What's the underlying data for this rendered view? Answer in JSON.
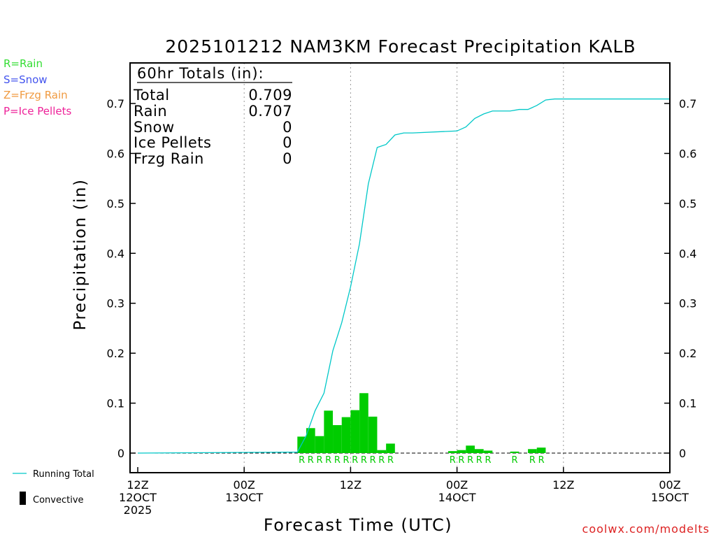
{
  "chart_data": {
    "type": "bar",
    "title": "2025101212 NAM3KM Forecast Precipitation KALB",
    "xlabel": "Forecast Time (UTC)",
    "ylabel": "Precipitation (in)",
    "ylim": [
      -0.04,
      0.78
    ],
    "yticks": [
      0,
      0.1,
      0.2,
      0.3,
      0.4,
      0.5,
      0.6,
      0.7
    ],
    "ytick_labels": [
      "0",
      "0.1",
      "0.2",
      "0.3",
      "0.4",
      "0.5",
      "0.6",
      "0.7"
    ],
    "xlim": [
      0,
      60
    ],
    "x_unit": "forecast hour",
    "x_ticks": [
      {
        "hour": 0,
        "lines": [
          "12Z",
          "12OCT",
          "2025"
        ]
      },
      {
        "hour": 12,
        "lines": [
          "00Z",
          "13OCT"
        ]
      },
      {
        "hour": 24,
        "lines": [
          "12Z"
        ]
      },
      {
        "hour": 36,
        "lines": [
          "00Z",
          "14OCT"
        ]
      },
      {
        "hour": 48,
        "lines": [
          "12Z"
        ]
      },
      {
        "hour": 60,
        "lines": [
          "00Z",
          "15OCT"
        ]
      }
    ],
    "grid": "dotted vertical lines at 00Z and 12Z",
    "series": [
      {
        "name": "Convective",
        "type": "bar",
        "color": "#00cc00",
        "bar_width_hours": 1,
        "x": [
          19,
          20,
          21,
          22,
          23,
          24,
          25,
          26,
          27,
          28,
          29,
          36,
          37,
          38,
          39,
          40,
          43,
          45,
          46
        ],
        "values": [
          0.033,
          0.05,
          0.034,
          0.085,
          0.056,
          0.072,
          0.086,
          0.12,
          0.073,
          0.006,
          0.019,
          0.004,
          0.006,
          0.015,
          0.008,
          0.005,
          0.003,
          0.008,
          0.011
        ]
      },
      {
        "name": "Running Total",
        "type": "line",
        "color": "#00c8c8",
        "x": [
          0,
          18,
          19,
          20,
          21,
          22,
          23,
          24,
          25,
          26,
          27,
          28,
          29,
          30,
          31,
          36,
          37,
          38,
          39,
          40,
          41,
          42,
          43,
          44,
          45,
          46,
          47,
          48,
          60
        ],
        "values": [
          0,
          0.002,
          0.035,
          0.085,
          0.12,
          0.205,
          0.261,
          0.333,
          0.419,
          0.539,
          0.612,
          0.618,
          0.637,
          0.641,
          0.641,
          0.645,
          0.653,
          0.67,
          0.679,
          0.685,
          0.685,
          0.685,
          0.688,
          0.688,
          0.696,
          0.707,
          0.709,
          0.709,
          0.709
        ]
      }
    ],
    "ptype_markers": {
      "color": "#00cc00",
      "x": [
        19,
        20,
        21,
        22,
        23,
        24,
        25,
        26,
        27,
        28,
        29,
        36,
        37,
        38,
        39,
        40,
        43,
        45,
        46
      ],
      "labels": [
        "R",
        "R",
        "R",
        "R",
        "R",
        "R",
        "R",
        "R",
        "R",
        "R",
        "R",
        "R",
        "R",
        "R",
        "R",
        "R",
        "R",
        "R",
        "R"
      ]
    },
    "totals_box": {
      "heading": "60hr Totals (in):",
      "rows": [
        {
          "label": "Total",
          "value": "0.709"
        },
        {
          "label": "Rain",
          "value": "0.707"
        },
        {
          "label": "Snow",
          "value": "0"
        },
        {
          "label": "Ice Pellets",
          "value": "0"
        },
        {
          "label": "Frzg Rain",
          "value": "0"
        }
      ]
    }
  },
  "ptype_key": [
    {
      "text": "R=Rain",
      "color": "#33dd33"
    },
    {
      "text": "S=Snow",
      "color": "#4455ee"
    },
    {
      "text": "Z=Frzg Rain",
      "color": "#f09a40"
    },
    {
      "text": "P=Ice Pellets",
      "color": "#ee2299"
    }
  ],
  "legend": {
    "running_total": "Running Total",
    "convective": "Convective"
  },
  "credit": "coolwx.com/modelts"
}
